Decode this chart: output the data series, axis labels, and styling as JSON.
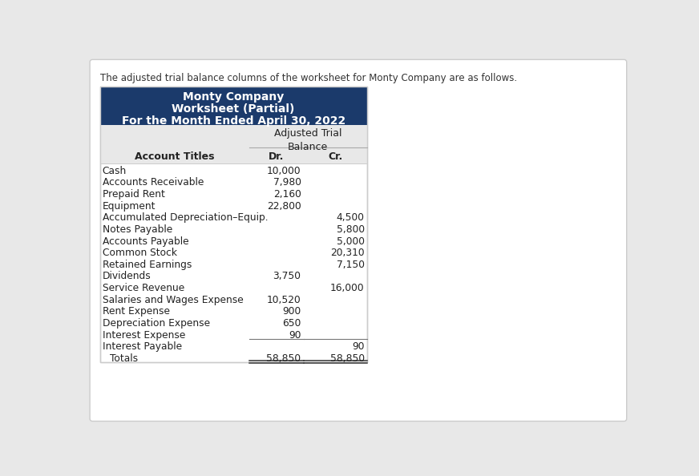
{
  "intro_text": "The adjusted trial balance columns of the worksheet for Monty Company are as follows.",
  "header_line1": "Monty Company",
  "header_line2": "Worksheet (Partial)",
  "header_line3": "For the Month Ended April 30, 2022",
  "col_dr": "Dr.",
  "col_cr": "Cr.",
  "col_account": "Account Titles",
  "header_bg": "#1B3A6B",
  "header_text_color": "#FFFFFF",
  "subheader_bg": "#E8E8E8",
  "table_bg": "#FFFFFF",
  "outer_bg": "#E8E8E8",
  "card_bg": "#FFFFFF",
  "border_color": "#CCCCCC",
  "rows": [
    {
      "account": "Cash",
      "dr": "10,000",
      "cr": ""
    },
    {
      "account": "Accounts Receivable",
      "dr": "7,980",
      "cr": ""
    },
    {
      "account": "Prepaid Rent",
      "dr": "2,160",
      "cr": ""
    },
    {
      "account": "Equipment",
      "dr": "22,800",
      "cr": ""
    },
    {
      "account": "Accumulated Depreciation–Equip.",
      "dr": "",
      "cr": "4,500"
    },
    {
      "account": "Notes Payable",
      "dr": "",
      "cr": "5,800"
    },
    {
      "account": "Accounts Payable",
      "dr": "",
      "cr": "5,000"
    },
    {
      "account": "Common Stock",
      "dr": "",
      "cr": "20,310"
    },
    {
      "account": "Retained Earnings",
      "dr": "",
      "cr": "7,150"
    },
    {
      "account": "Dividends",
      "dr": "3,750",
      "cr": ""
    },
    {
      "account": "Service Revenue",
      "dr": "",
      "cr": "16,000"
    },
    {
      "account": "Salaries and Wages Expense",
      "dr": "10,520",
      "cr": ""
    },
    {
      "account": "Rent Expense",
      "dr": "900",
      "cr": ""
    },
    {
      "account": "Depreciation Expense",
      "dr": "650",
      "cr": ""
    },
    {
      "account": "Interest Expense",
      "dr": "90",
      "cr": ""
    },
    {
      "account": "Interest Payable",
      "dr": "",
      "cr": "90"
    }
  ],
  "totals_label": "Totals",
  "totals_dr": "58,850",
  "totals_cr": "58,850"
}
